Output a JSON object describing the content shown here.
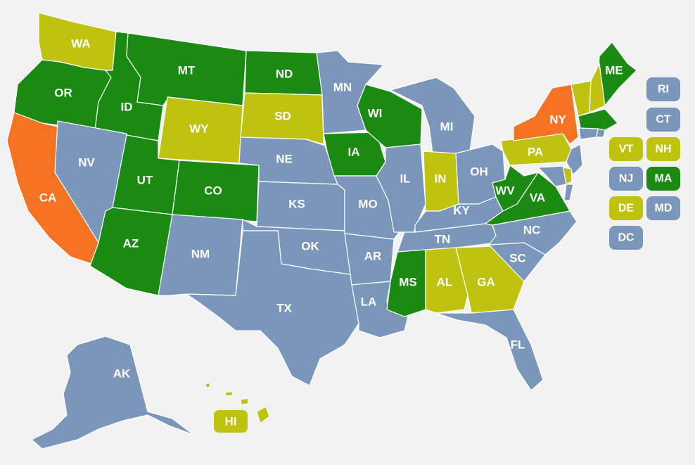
{
  "colors": {
    "blue": "#7a97bb",
    "green": "#1a8a12",
    "yellow": "#bfc20f",
    "orange": "#f47323",
    "background": "#f2f2f2"
  },
  "states": [
    {
      "abbr": "WA",
      "category": "yellow"
    },
    {
      "abbr": "OR",
      "category": "green"
    },
    {
      "abbr": "CA",
      "category": "orange"
    },
    {
      "abbr": "ID",
      "category": "green"
    },
    {
      "abbr": "NV",
      "category": "blue"
    },
    {
      "abbr": "MT",
      "category": "green"
    },
    {
      "abbr": "WY",
      "category": "yellow"
    },
    {
      "abbr": "UT",
      "category": "green"
    },
    {
      "abbr": "AZ",
      "category": "green"
    },
    {
      "abbr": "CO",
      "category": "green"
    },
    {
      "abbr": "NM",
      "category": "blue"
    },
    {
      "abbr": "ND",
      "category": "green"
    },
    {
      "abbr": "SD",
      "category": "yellow"
    },
    {
      "abbr": "NE",
      "category": "blue"
    },
    {
      "abbr": "KS",
      "category": "blue"
    },
    {
      "abbr": "OK",
      "category": "blue"
    },
    {
      "abbr": "TX",
      "category": "blue"
    },
    {
      "abbr": "MN",
      "category": "blue"
    },
    {
      "abbr": "IA",
      "category": "green"
    },
    {
      "abbr": "MO",
      "category": "blue"
    },
    {
      "abbr": "AR",
      "category": "blue"
    },
    {
      "abbr": "LA",
      "category": "blue"
    },
    {
      "abbr": "WI",
      "category": "green"
    },
    {
      "abbr": "IL",
      "category": "blue"
    },
    {
      "abbr": "MI",
      "category": "blue"
    },
    {
      "abbr": "IN",
      "category": "yellow"
    },
    {
      "abbr": "OH",
      "category": "blue"
    },
    {
      "abbr": "KY",
      "category": "blue"
    },
    {
      "abbr": "TN",
      "category": "blue"
    },
    {
      "abbr": "MS",
      "category": "green"
    },
    {
      "abbr": "AL",
      "category": "yellow"
    },
    {
      "abbr": "GA",
      "category": "yellow"
    },
    {
      "abbr": "FL",
      "category": "blue"
    },
    {
      "abbr": "SC",
      "category": "blue"
    },
    {
      "abbr": "NC",
      "category": "blue"
    },
    {
      "abbr": "VA",
      "category": "green"
    },
    {
      "abbr": "WV",
      "category": "green"
    },
    {
      "abbr": "PA",
      "category": "yellow"
    },
    {
      "abbr": "NY",
      "category": "orange"
    },
    {
      "abbr": "ME",
      "category": "green"
    },
    {
      "abbr": "AK",
      "category": "blue"
    },
    {
      "abbr": "HI",
      "category": "yellow"
    }
  ],
  "small_states": [
    {
      "abbr": "RI",
      "category": "blue"
    },
    {
      "abbr": "CT",
      "category": "blue"
    },
    {
      "abbr": "VT",
      "category": "yellow"
    },
    {
      "abbr": "NH",
      "category": "yellow"
    },
    {
      "abbr": "NJ",
      "category": "blue"
    },
    {
      "abbr": "MA",
      "category": "green"
    },
    {
      "abbr": "DE",
      "category": "yellow"
    },
    {
      "abbr": "MD",
      "category": "blue"
    },
    {
      "abbr": "DC",
      "category": "blue"
    }
  ]
}
